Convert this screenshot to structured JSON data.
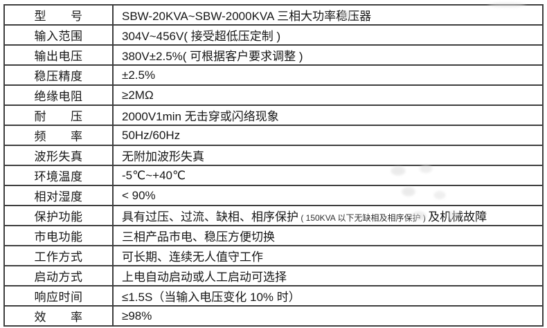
{
  "page": {
    "background_color": "#ffffff",
    "grid_color": "#3e3e3e",
    "text_color": "#161616"
  },
  "table": {
    "rows": [
      {
        "label": "型　　号",
        "segments": [
          {
            "text": "SBW-20KVA~SBW-2000KVA 三相大功率稳压器",
            "size": "normal"
          }
        ]
      },
      {
        "label": "输入范围",
        "segments": [
          {
            "text": "304V~456V( 接受超低压定制 )",
            "size": "normal"
          }
        ]
      },
      {
        "label": "输出电压",
        "segments": [
          {
            "text": "380V±2.5%( 可根据客户要求调整 )",
            "size": "normal"
          }
        ]
      },
      {
        "label": "稳压精度",
        "segments": [
          {
            "text": "±2.5%",
            "size": "normal"
          }
        ]
      },
      {
        "label": "绝缘电阻",
        "segments": [
          {
            "text": "≥2MΩ",
            "size": "normal"
          }
        ]
      },
      {
        "label": "耐　　压",
        "segments": [
          {
            "text": "2000V1min 无击穿或闪络现象",
            "size": "normal"
          }
        ]
      },
      {
        "label": "频　　率",
        "segments": [
          {
            "text": "50Hz/60Hz",
            "size": "normal"
          }
        ]
      },
      {
        "label": "波形失真",
        "segments": [
          {
            "text": "无附加波形失真",
            "size": "normal"
          }
        ]
      },
      {
        "label": "环境温度",
        "segments": [
          {
            "text": "-5℃~+40℃",
            "size": "normal"
          }
        ]
      },
      {
        "label": "相对湿度",
        "segments": [
          {
            "text": "< 90%",
            "size": "normal"
          }
        ]
      },
      {
        "label": "保护功能",
        "segments": [
          {
            "text": "具有过压、过流、缺相、相序保护",
            "size": "normal"
          },
          {
            "text": " ( 150KVA 以下无缺相及相序保护 ) ",
            "size": "small"
          },
          {
            "text": "及机械故障",
            "size": "normal"
          }
        ]
      },
      {
        "label": "市电功能",
        "segments": [
          {
            "text": "三相产品市电、稳压方便切换",
            "size": "normal"
          }
        ]
      },
      {
        "label": "工作方式",
        "segments": [
          {
            "text": "可长期、连续无人值守工作",
            "size": "normal"
          }
        ]
      },
      {
        "label": "启动方式",
        "segments": [
          {
            "text": "上电自动启动或人工启动可选择",
            "size": "normal"
          }
        ]
      },
      {
        "label": "响应时间",
        "segments": [
          {
            "text": "≤1.5S（当输入电压变化 10% 时）",
            "size": "normal"
          }
        ]
      },
      {
        "label": "效　　率",
        "segments": [
          {
            "text": "≥98%",
            "size": "normal"
          }
        ]
      }
    ]
  }
}
